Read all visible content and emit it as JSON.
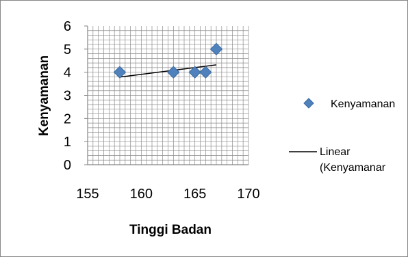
{
  "chart_data": {
    "type": "scatter",
    "xlabel": "Tinggi Badan",
    "ylabel": "Kenyamanan",
    "xlim": [
      155,
      170
    ],
    "ylim": [
      0,
      6
    ],
    "x_ticks": [
      155,
      160,
      165,
      170
    ],
    "y_ticks": [
      0,
      1,
      2,
      3,
      4,
      5,
      6
    ],
    "grid": true,
    "legend_position": "right",
    "series": [
      {
        "name": "Kenyamanan",
        "marker": "diamond",
        "color": "#4F81BD",
        "x": [
          158,
          163,
          165,
          166,
          167
        ],
        "y": [
          4,
          4,
          4,
          4,
          5
        ]
      }
    ],
    "trendline": {
      "name": "Linear (Kenyamanan)",
      "legend_label": "Linear (Kenyamanar",
      "type": "linear",
      "color": "#000000",
      "x": [
        158,
        167
      ],
      "y": [
        3.79,
        4.32
      ]
    }
  }
}
